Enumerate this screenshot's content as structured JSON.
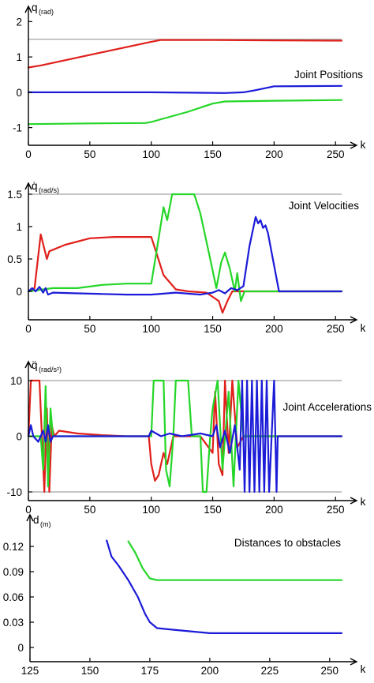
{
  "chart_data": [
    {
      "type": "line",
      "ylabel": "q",
      "ylabel_unit": "(rad)",
      "xlabel": "k",
      "annotation": "Joint Positions",
      "xlim": [
        0,
        255
      ],
      "ylim": [
        -1.5,
        2.5
      ],
      "xticks": [
        0,
        50,
        100,
        150,
        200,
        250
      ],
      "yticks": [
        -1,
        0,
        1,
        2
      ],
      "reference_lines": [
        1.5
      ],
      "series": [
        {
          "color": "#e0201b",
          "x": [
            0,
            10,
            100,
            108,
            150,
            200,
            255
          ],
          "y": [
            0.7,
            0.76,
            1.43,
            1.48,
            1.48,
            1.47,
            1.46
          ]
        },
        {
          "color": "#1b1bd8",
          "x": [
            0,
            100,
            160,
            175,
            185,
            200,
            255
          ],
          "y": [
            0.0,
            0.0,
            -0.02,
            0.0,
            0.06,
            0.17,
            0.18
          ]
        },
        {
          "color": "#25d628",
          "x": [
            0,
            50,
            95,
            100,
            130,
            150,
            160,
            200,
            255
          ],
          "y": [
            -0.9,
            -0.88,
            -0.87,
            -0.84,
            -0.55,
            -0.32,
            -0.26,
            -0.24,
            -0.22
          ]
        }
      ]
    },
    {
      "type": "line",
      "ylabel": "q̇",
      "ylabel_unit": "(rad/s)",
      "xlabel": "k",
      "annotation": "Joint Velocities",
      "xlim": [
        0,
        255
      ],
      "ylim": [
        -0.45,
        1.6
      ],
      "xticks": [
        0,
        50,
        100,
        150,
        200,
        250
      ],
      "yticks": [
        0,
        0.5,
        1,
        1.5
      ],
      "ytick_labels": [
        "0",
        "0.5",
        "1",
        "1.5"
      ],
      "reference_lines": [
        1.5
      ],
      "series": [
        {
          "color": "#e0201b",
          "x": [
            0,
            5,
            10,
            15,
            17,
            30,
            50,
            70,
            90,
            100,
            110,
            120,
            130,
            145,
            155,
            158,
            162,
            166,
            255
          ],
          "y": [
            0,
            0.05,
            0.88,
            0.5,
            0.62,
            0.72,
            0.82,
            0.84,
            0.84,
            0.84,
            0.25,
            0.03,
            0.0,
            -0.02,
            -0.15,
            -0.33,
            -0.15,
            0.0,
            0.0
          ]
        },
        {
          "color": "#25d628",
          "x": [
            0,
            20,
            40,
            60,
            80,
            90,
            100,
            105,
            110,
            113,
            117,
            122,
            130,
            135,
            140,
            148,
            153,
            157,
            160,
            164,
            168,
            170,
            173,
            176,
            180,
            255
          ],
          "y": [
            0,
            0.05,
            0.05,
            0.1,
            0.12,
            0.12,
            0.12,
            0.7,
            1.3,
            1.1,
            1.5,
            1.5,
            1.5,
            1.5,
            1.2,
            0.5,
            0.05,
            0.45,
            0.6,
            0.35,
            0.0,
            0.28,
            -0.15,
            0.0,
            0.0,
            0.0
          ]
        },
        {
          "color": "#1b1bd8",
          "x": [
            0,
            3,
            6,
            9,
            12,
            14,
            16,
            20,
            40,
            60,
            80,
            100,
            120,
            140,
            150,
            155,
            160,
            165,
            170,
            175,
            180,
            185,
            187,
            189,
            191,
            193,
            195,
            204,
            255
          ],
          "y": [
            0,
            0.05,
            0.0,
            0.07,
            -0.02,
            0.05,
            -0.05,
            -0.02,
            -0.03,
            -0.04,
            -0.05,
            -0.05,
            -0.02,
            -0.05,
            -0.02,
            0.02,
            -0.03,
            0.05,
            0.02,
            0.08,
            0.7,
            1.15,
            1.05,
            1.1,
            0.98,
            1.02,
            0.9,
            0.0,
            0.0
          ]
        }
      ]
    },
    {
      "type": "line",
      "ylabel": "q̈",
      "ylabel_unit": "(rad/s²)",
      "xlabel": "k",
      "annotation": "Joint Accelerations",
      "xlim": [
        0,
        255
      ],
      "ylim": [
        -12,
        12
      ],
      "xticks": [
        0,
        50,
        100,
        150,
        200,
        250
      ],
      "yticks": [
        -10,
        0,
        10
      ],
      "reference_lines": [
        10,
        -10
      ],
      "series": [
        {
          "color": "#e0201b",
          "x": [
            0,
            2,
            9,
            11,
            13,
            15,
            17,
            19,
            21,
            25,
            40,
            60,
            80,
            98,
            100,
            103,
            106,
            110,
            113,
            118,
            140,
            150,
            152,
            155,
            158,
            160,
            163,
            166,
            170,
            175,
            255
          ],
          "y": [
            0,
            10,
            10,
            0,
            -10,
            5,
            -10,
            2,
            0,
            1,
            0.5,
            0.2,
            0,
            0,
            -5,
            -8,
            -7,
            -3,
            -5,
            0,
            0,
            -3,
            8,
            -5,
            -7,
            10,
            -3,
            10,
            -2,
            0,
            0
          ]
        },
        {
          "color": "#25d628",
          "x": [
            0,
            10,
            12,
            14,
            16,
            18,
            20,
            22,
            40,
            50,
            60,
            100,
            102,
            105,
            110,
            112,
            115,
            118,
            120,
            130,
            133,
            140,
            142,
            145,
            148,
            150,
            154,
            158,
            163,
            167,
            171,
            175,
            255
          ],
          "y": [
            0,
            0,
            -6,
            9,
            -9,
            5,
            0,
            0,
            0,
            0,
            0,
            0,
            10,
            10,
            10,
            -6,
            -9,
            0,
            10,
            10,
            0,
            0,
            -10,
            -10,
            0,
            5,
            10,
            -6,
            8,
            -9,
            10,
            0,
            0
          ]
        },
        {
          "color": "#1b1bd8",
          "x": [
            0,
            2,
            4,
            8,
            12,
            14,
            16,
            18,
            20,
            40,
            80,
            98,
            100,
            104,
            108,
            115,
            125,
            140,
            150,
            153,
            156,
            160,
            164,
            168,
            172,
            174,
            176,
            178,
            180,
            182,
            184,
            186,
            188,
            190,
            192,
            194,
            196,
            200,
            202,
            203,
            255
          ],
          "y": [
            0,
            2,
            0,
            -1,
            1,
            -1,
            2,
            -1,
            0,
            0,
            0,
            0,
            1,
            0.5,
            0,
            0.5,
            0,
            0.5,
            0,
            2,
            -2,
            1,
            -3,
            2,
            -6,
            10,
            -10,
            10,
            -10,
            10,
            -10,
            10,
            -10,
            10,
            -10,
            10,
            -10,
            10,
            -10,
            0,
            0
          ]
        }
      ]
    },
    {
      "type": "line",
      "ylabel": "d",
      "ylabel_unit": "(m)",
      "xlabel": "k",
      "annotation": "Distances to obstacles",
      "xlim": [
        125,
        255
      ],
      "ylim": [
        -0.005,
        0.135
      ],
      "xticks": [
        125,
        150,
        175,
        200,
        225,
        250
      ],
      "yticks": [
        0,
        0.03,
        0.06,
        0.09,
        0.12
      ],
      "ytick_labels": [
        "0",
        "0.03",
        "0.06",
        "0.09",
        "0.12"
      ],
      "series": [
        {
          "color": "#25d628",
          "x": [
            166,
            169,
            172,
            175,
            178,
            200,
            255
          ],
          "y": [
            0.126,
            0.112,
            0.094,
            0.082,
            0.08,
            0.08,
            0.08
          ]
        },
        {
          "color": "#1b1bd8",
          "x": [
            157,
            159,
            162,
            166,
            170,
            173,
            175,
            178,
            185,
            200,
            230,
            255
          ],
          "y": [
            0.127,
            0.108,
            0.097,
            0.08,
            0.06,
            0.04,
            0.03,
            0.023,
            0.021,
            0.017,
            0.017,
            0.017
          ]
        }
      ]
    }
  ]
}
